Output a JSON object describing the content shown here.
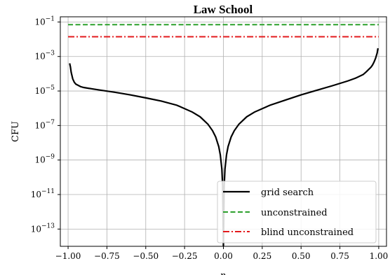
{
  "chart_data": {
    "type": "line",
    "title": "Law School",
    "xlabel": "n",
    "ylabel": "CFU",
    "xlim": [
      -1.05,
      1.05
    ],
    "ylim_log10": [
      -14,
      -0.7
    ],
    "y_scale": "log",
    "grid": true,
    "legend_position": "lower-right",
    "x_ticks": [
      -1.0,
      -0.75,
      -0.5,
      -0.25,
      0.0,
      0.25,
      0.5,
      0.75,
      1.0
    ],
    "x_tick_labels": [
      "−1.00",
      "−0.75",
      "−0.50",
      "−0.25",
      "0.00",
      "0.25",
      "0.50",
      "0.75",
      "1.00"
    ],
    "y_ticks_log10": [
      -1,
      -3,
      -5,
      -7,
      -9,
      -11,
      -13
    ],
    "y_tick_labels": [
      {
        "base": "10",
        "exp": "−1"
      },
      {
        "base": "10",
        "exp": "−3"
      },
      {
        "base": "10",
        "exp": "−5"
      },
      {
        "base": "10",
        "exp": "−7"
      },
      {
        "base": "10",
        "exp": "−9"
      },
      {
        "base": "10",
        "exp": "−11"
      },
      {
        "base": "10",
        "exp": "−13"
      }
    ],
    "series": [
      {
        "name": "grid search",
        "color": "#000000",
        "style": "solid",
        "x": [
          -0.99,
          -0.985,
          -0.98,
          -0.97,
          -0.96,
          -0.95,
          -0.92,
          -0.9,
          -0.85,
          -0.8,
          -0.7,
          -0.6,
          -0.5,
          -0.4,
          -0.3,
          -0.2,
          -0.15,
          -0.1,
          -0.07,
          -0.05,
          -0.03,
          -0.02,
          -0.01,
          -0.005,
          0.0,
          0.005,
          0.01,
          0.02,
          0.03,
          0.05,
          0.07,
          0.1,
          0.15,
          0.2,
          0.3,
          0.4,
          0.5,
          0.6,
          0.7,
          0.8,
          0.85,
          0.9,
          0.92,
          0.95,
          0.96,
          0.97,
          0.98,
          0.99,
          0.995
        ],
        "y": [
          0.0004,
          0.00025,
          0.00012,
          5e-05,
          3.2e-05,
          2.5e-05,
          1.8e-05,
          1.6e-05,
          1.35e-05,
          1.15e-05,
          8.5e-06,
          6e-06,
          4e-06,
          2.6e-06,
          1.5e-06,
          6e-07,
          3.2e-07,
          1.2e-07,
          5e-08,
          2.2e-08,
          6e-09,
          2e-09,
          3e-10,
          3e-11,
          1e-14,
          3e-11,
          3e-10,
          2e-09,
          6e-09,
          2.2e-08,
          5e-08,
          1.2e-07,
          3.2e-07,
          6e-07,
          1.5e-06,
          3e-06,
          6e-06,
          1.1e-05,
          2e-05,
          3.8e-05,
          5.5e-05,
          9e-05,
          0.00013,
          0.00024,
          0.00032,
          0.00048,
          0.0008,
          0.0016,
          0.003
        ]
      },
      {
        "name": "unconstrained",
        "color": "#2ca02c",
        "style": "dashed",
        "x": [
          -1.0,
          1.0
        ],
        "y": [
          0.07,
          0.07
        ]
      },
      {
        "name": "blind unconstrained",
        "color": "#e31a1c",
        "style": "dashdot",
        "x": [
          -1.0,
          1.0
        ],
        "y": [
          0.014,
          0.014
        ]
      }
    ]
  }
}
